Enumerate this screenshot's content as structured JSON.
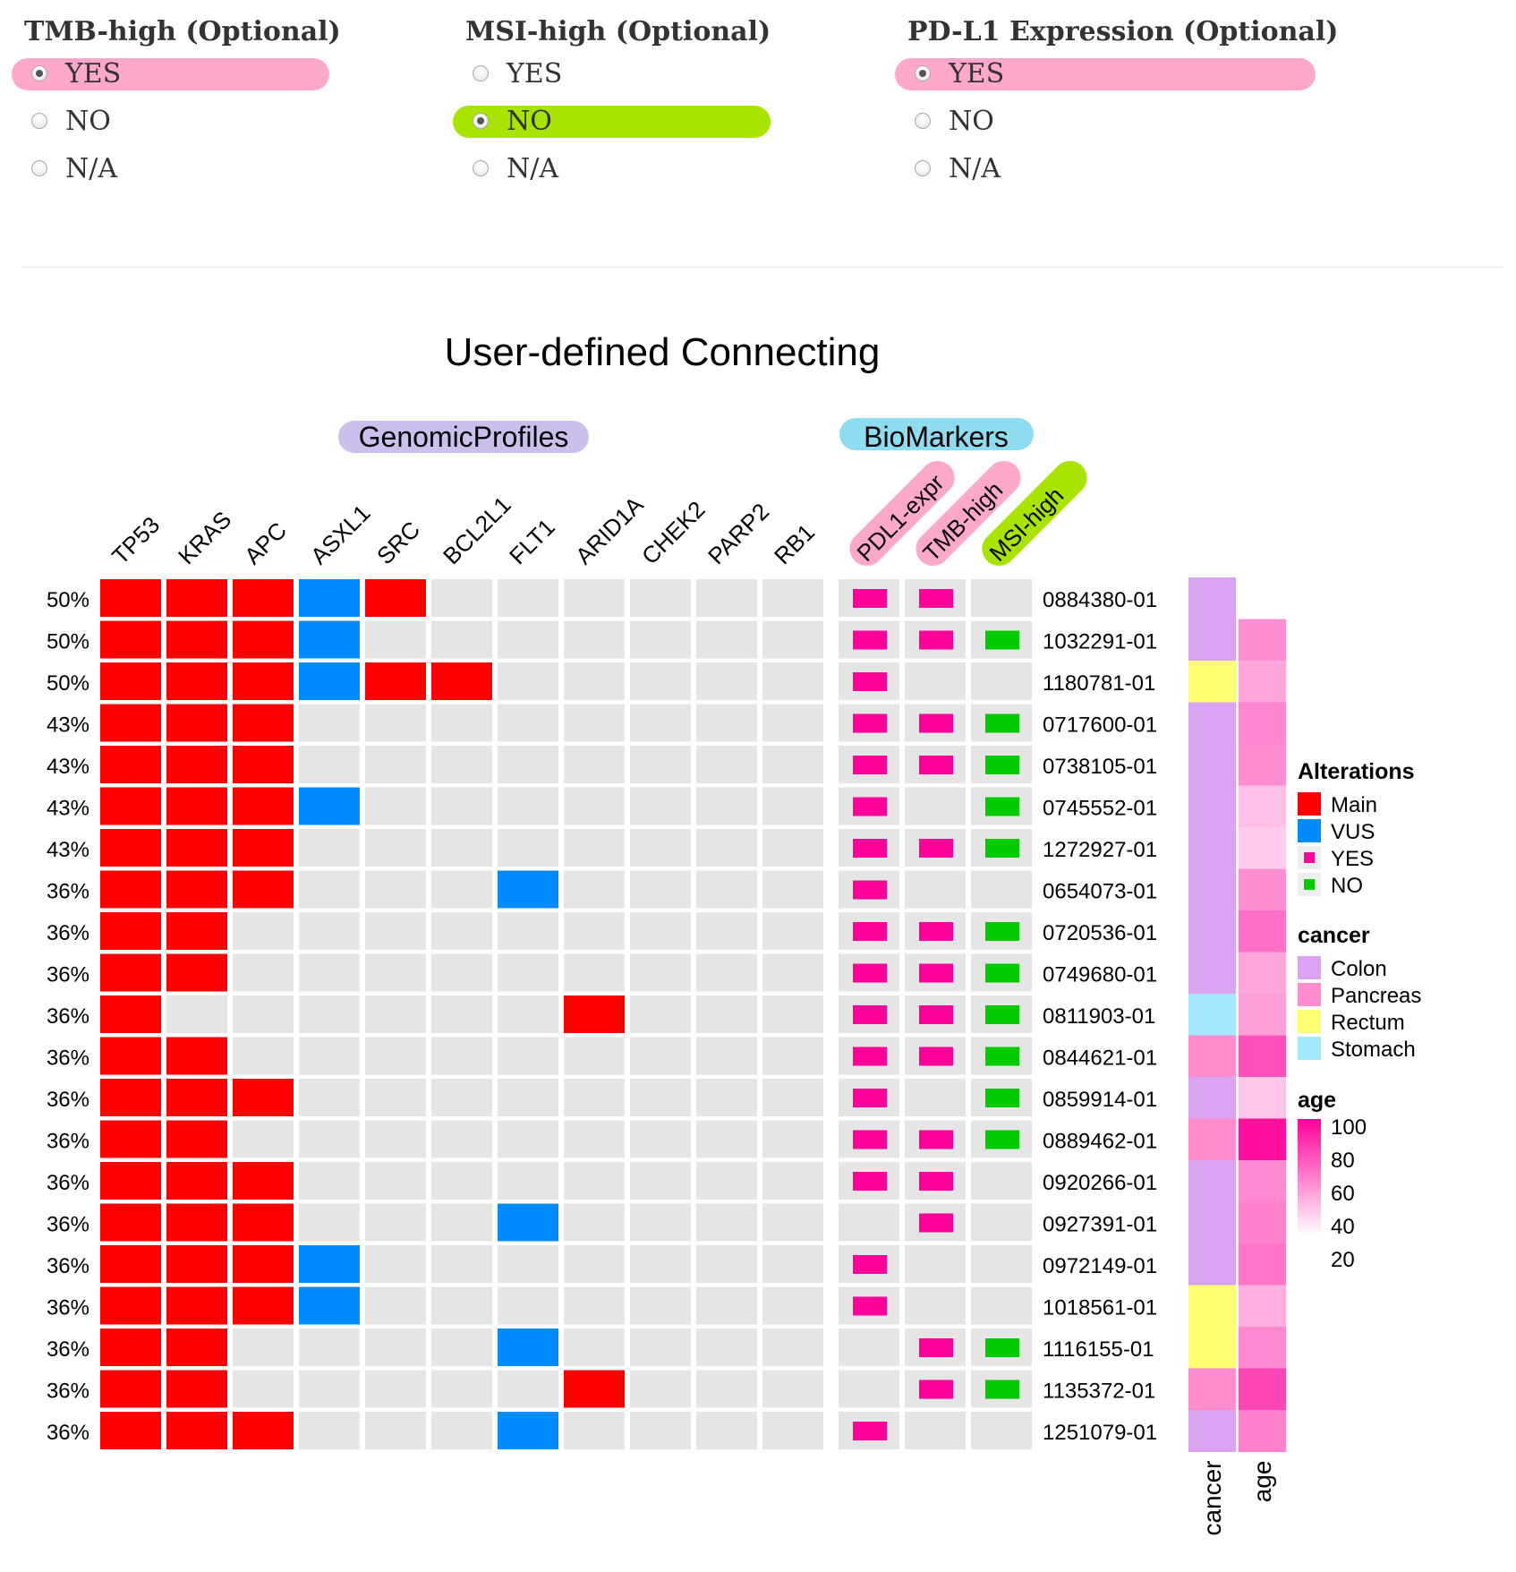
{
  "options": {
    "groups": [
      {
        "title": "TMB-high (Optional)",
        "items": [
          "YES",
          "NO",
          "N/A"
        ],
        "selected": 0,
        "highlight": "#ffa8cb"
      },
      {
        "title": "MSI-high (Optional)",
        "items": [
          "YES",
          "NO",
          "N/A"
        ],
        "selected": 1,
        "highlight": "#a8e400"
      },
      {
        "title": "PD-L1 Expression (Optional)",
        "items": [
          "YES",
          "NO",
          "N/A"
        ],
        "selected": 0,
        "highlight": "#ffa8cb"
      }
    ]
  },
  "chart_data": {
    "type": "heatmap",
    "title": "User-defined Connecting",
    "section_labels": {
      "genomic": "GenomicProfiles",
      "biomarkers": "BioMarkers"
    },
    "genes": [
      "TP53",
      "KRAS",
      "APC",
      "ASXL1",
      "SRC",
      "BCL2L1",
      "FLT1",
      "ARID1A",
      "CHEK2",
      "PARP2",
      "RB1"
    ],
    "biomarkers": [
      "PDL1-expr",
      "TMB-high",
      "MSI-high"
    ],
    "rows": [
      {
        "pct": "50%",
        "id": "0884380-01",
        "genes": [
          "M",
          "M",
          "M",
          "V",
          "M",
          "",
          "",
          "",
          "",
          "",
          ""
        ],
        "pdl1": "YES",
        "tmb": "YES",
        "msi": "",
        "cancer": "Colon",
        "age": null
      },
      {
        "pct": "50%",
        "id": "1032291-01",
        "genes": [
          "M",
          "M",
          "M",
          "V",
          "",
          "",
          "",
          "",
          "",
          "",
          ""
        ],
        "pdl1": "YES",
        "tmb": "YES",
        "msi": "NO",
        "cancer": "Colon",
        "age": 55
      },
      {
        "pct": "50%",
        "id": "1180781-01",
        "genes": [
          "M",
          "M",
          "M",
          "V",
          "M",
          "M",
          "",
          "",
          "",
          "",
          ""
        ],
        "pdl1": "YES",
        "tmb": "",
        "msi": "",
        "cancer": "Rectum",
        "age": 48
      },
      {
        "pct": "43%",
        "id": "0717600-01",
        "genes": [
          "M",
          "M",
          "M",
          "",
          "",
          "",
          "",
          "",
          "",
          "",
          ""
        ],
        "pdl1": "YES",
        "tmb": "YES",
        "msi": "NO",
        "cancer": "Colon",
        "age": 58
      },
      {
        "pct": "43%",
        "id": "0738105-01",
        "genes": [
          "M",
          "M",
          "M",
          "",
          "",
          "",
          "",
          "",
          "",
          "",
          ""
        ],
        "pdl1": "YES",
        "tmb": "YES",
        "msi": "NO",
        "cancer": "Colon",
        "age": 56
      },
      {
        "pct": "43%",
        "id": "0745552-01",
        "genes": [
          "M",
          "M",
          "M",
          "V",
          "",
          "",
          "",
          "",
          "",
          "",
          ""
        ],
        "pdl1": "YES",
        "tmb": "",
        "msi": "NO",
        "cancer": "Colon",
        "age": 40
      },
      {
        "pct": "43%",
        "id": "1272927-01",
        "genes": [
          "M",
          "M",
          "M",
          "",
          "",
          "",
          "",
          "",
          "",
          "",
          ""
        ],
        "pdl1": "YES",
        "tmb": "YES",
        "msi": "NO",
        "cancer": "Colon",
        "age": 36
      },
      {
        "pct": "36%",
        "id": "0654073-01",
        "genes": [
          "M",
          "M",
          "M",
          "",
          "",
          "",
          "V",
          "",
          "",
          "",
          ""
        ],
        "pdl1": "YES",
        "tmb": "",
        "msi": "",
        "cancer": "Colon",
        "age": 55
      },
      {
        "pct": "36%",
        "id": "0720536-01",
        "genes": [
          "M",
          "M",
          "",
          "",
          "",
          "",
          "",
          "",
          "",
          "",
          ""
        ],
        "pdl1": "YES",
        "tmb": "YES",
        "msi": "NO",
        "cancer": "Colon",
        "age": 65
      },
      {
        "pct": "36%",
        "id": "0749680-01",
        "genes": [
          "M",
          "M",
          "",
          "",
          "",
          "",
          "",
          "",
          "",
          "",
          ""
        ],
        "pdl1": "YES",
        "tmb": "YES",
        "msi": "NO",
        "cancer": "Colon",
        "age": 48
      },
      {
        "pct": "36%",
        "id": "0811903-01",
        "genes": [
          "M",
          "",
          "",
          "",
          "",
          "",
          "",
          "M",
          "",
          "",
          ""
        ],
        "pdl1": "YES",
        "tmb": "YES",
        "msi": "NO",
        "cancer": "Stomach",
        "age": 50
      },
      {
        "pct": "36%",
        "id": "0844621-01",
        "genes": [
          "M",
          "M",
          "",
          "",
          "",
          "",
          "",
          "",
          "",
          "",
          ""
        ],
        "pdl1": "YES",
        "tmb": "YES",
        "msi": "NO",
        "cancer": "Pancreas",
        "age": 75
      },
      {
        "pct": "36%",
        "id": "0859914-01",
        "genes": [
          "M",
          "M",
          "M",
          "",
          "",
          "",
          "",
          "",
          "",
          "",
          ""
        ],
        "pdl1": "YES",
        "tmb": "",
        "msi": "NO",
        "cancer": "Colon",
        "age": 38
      },
      {
        "pct": "36%",
        "id": "0889462-01",
        "genes": [
          "M",
          "M",
          "",
          "",
          "",
          "",
          "",
          "",
          "",
          "",
          ""
        ],
        "pdl1": "YES",
        "tmb": "YES",
        "msi": "NO",
        "cancer": "Pancreas",
        "age": 95
      },
      {
        "pct": "36%",
        "id": "0920266-01",
        "genes": [
          "M",
          "M",
          "M",
          "",
          "",
          "",
          "",
          "",
          "",
          "",
          ""
        ],
        "pdl1": "YES",
        "tmb": "YES",
        "msi": "",
        "cancer": "Colon",
        "age": 57
      },
      {
        "pct": "36%",
        "id": "0927391-01",
        "genes": [
          "M",
          "M",
          "M",
          "",
          "",
          "",
          "V",
          "",
          "",
          "",
          ""
        ],
        "pdl1": "",
        "tmb": "YES",
        "msi": "",
        "cancer": "Colon",
        "age": 60
      },
      {
        "pct": "36%",
        "id": "0972149-01",
        "genes": [
          "M",
          "M",
          "M",
          "V",
          "",
          "",
          "",
          "",
          "",
          "",
          ""
        ],
        "pdl1": "YES",
        "tmb": "",
        "msi": "",
        "cancer": "Colon",
        "age": 63
      },
      {
        "pct": "36%",
        "id": "1018561-01",
        "genes": [
          "M",
          "M",
          "M",
          "V",
          "",
          "",
          "",
          "",
          "",
          "",
          ""
        ],
        "pdl1": "YES",
        "tmb": "",
        "msi": "",
        "cancer": "Rectum",
        "age": 45
      },
      {
        "pct": "36%",
        "id": "1116155-01",
        "genes": [
          "M",
          "M",
          "",
          "",
          "",
          "",
          "V",
          "",
          "",
          "",
          ""
        ],
        "pdl1": "",
        "tmb": "YES",
        "msi": "NO",
        "cancer": "Rectum",
        "age": 57
      },
      {
        "pct": "36%",
        "id": "1135372-01",
        "genes": [
          "M",
          "M",
          "",
          "",
          "",
          "",
          "",
          "M",
          "",
          "",
          ""
        ],
        "pdl1": "",
        "tmb": "YES",
        "msi": "NO",
        "cancer": "Pancreas",
        "age": 78
      },
      {
        "pct": "36%",
        "id": "1251079-01",
        "genes": [
          "M",
          "M",
          "M",
          "",
          "",
          "",
          "V",
          "",
          "",
          "",
          ""
        ],
        "pdl1": "YES",
        "tmb": "",
        "msi": "",
        "cancer": "Colon",
        "age": 60
      }
    ],
    "annotation_labels": [
      "cancer",
      "age"
    ],
    "legend": {
      "alterations": {
        "title": "Alterations",
        "entries": [
          {
            "label": "Main",
            "color": "#ff0000"
          },
          {
            "label": "VUS",
            "color": "#008cff"
          },
          {
            "label": "YES",
            "color": "#ff0099"
          },
          {
            "label": "NO",
            "color": "#00cc00"
          }
        ]
      },
      "cancer": {
        "title": "cancer",
        "entries": [
          {
            "label": "Colon",
            "color": "#d9a3f2"
          },
          {
            "label": "Pancreas",
            "color": "#ff8ccc"
          },
          {
            "label": "Rectum",
            "color": "#ffff73"
          },
          {
            "label": "Stomach",
            "color": "#a6e8ff"
          }
        ]
      },
      "age": {
        "title": "age",
        "ticks": [
          "100",
          "80",
          "60",
          "40",
          "20"
        ],
        "range": [
          20,
          100
        ]
      }
    },
    "colors": {
      "main": "#ff0000",
      "vus": "#008cff",
      "yes": "#ff0099",
      "no": "#00cc00",
      "empty": "#e5e5e5",
      "genomic_pill": "#cbbfee",
      "biomarker_pill": "#8edcef",
      "pdl1_pill": "#ffa8cb",
      "tmb_pill": "#ffa8cb",
      "msi_pill": "#a8e400"
    }
  }
}
